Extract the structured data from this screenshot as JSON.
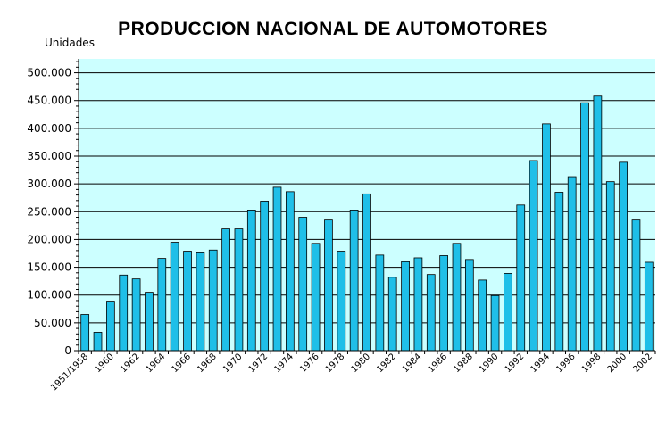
{
  "chart_data": {
    "type": "bar",
    "title": "PRODUCCION NACIONAL DE AUTOMOTORES",
    "ylabel": "Unidades",
    "xlabel": "",
    "ylim": [
      0,
      525000
    ],
    "ytick_values": [
      0,
      50000,
      100000,
      150000,
      200000,
      250000,
      300000,
      350000,
      400000,
      450000,
      500000
    ],
    "ytick_labels": [
      "0",
      "50.000",
      "100.000",
      "150.000",
      "200.000",
      "250.000",
      "300.000",
      "350.000",
      "400.000",
      "450.000",
      "500.000"
    ],
    "grid": true,
    "colors": {
      "bar": "#1fbfe8",
      "plot_background": "#ccffff",
      "bar_edge": "#000000"
    },
    "categories": [
      "1951/1958",
      "1959",
      "1960",
      "1961",
      "1962",
      "1963",
      "1964",
      "1965",
      "1966",
      "1967",
      "1968",
      "1969",
      "1970",
      "1971",
      "1972",
      "1973",
      "1974",
      "1975",
      "1976",
      "1977",
      "1978",
      "1979",
      "1980",
      "1981",
      "1982",
      "1983",
      "1984",
      "1985",
      "1986",
      "1987",
      "1988",
      "1989",
      "1990",
      "1991",
      "1992",
      "1993",
      "1994",
      "1995",
      "1996",
      "1997",
      "1998",
      "1999",
      "2000",
      "2001",
      "2002"
    ],
    "values": [
      65000,
      33000,
      89000,
      136000,
      129000,
      105000,
      166000,
      195000,
      179000,
      176000,
      181000,
      219000,
      219000,
      253000,
      269000,
      294000,
      286000,
      240000,
      193000,
      235000,
      179000,
      253000,
      282000,
      172000,
      132000,
      160000,
      167000,
      137000,
      171000,
      193000,
      164000,
      127000,
      99000,
      139000,
      262000,
      342000,
      408000,
      285000,
      313000,
      446000,
      458000,
      304000,
      339000,
      235000,
      159000
    ],
    "xtick_labels": [
      "1951/1958",
      "1960",
      "1962",
      "1964",
      "1966",
      "1968",
      "1970",
      "1972",
      "1974",
      "1976",
      "1978",
      "1980",
      "1982",
      "1984",
      "1986",
      "1988",
      "1990",
      "1992",
      "1994",
      "1996",
      "1998",
      "2000",
      "2002"
    ],
    "xtick_index": [
      0,
      2,
      4,
      6,
      8,
      10,
      12,
      14,
      16,
      18,
      20,
      22,
      24,
      26,
      28,
      30,
      32,
      34,
      36,
      38,
      40,
      42,
      44
    ]
  }
}
